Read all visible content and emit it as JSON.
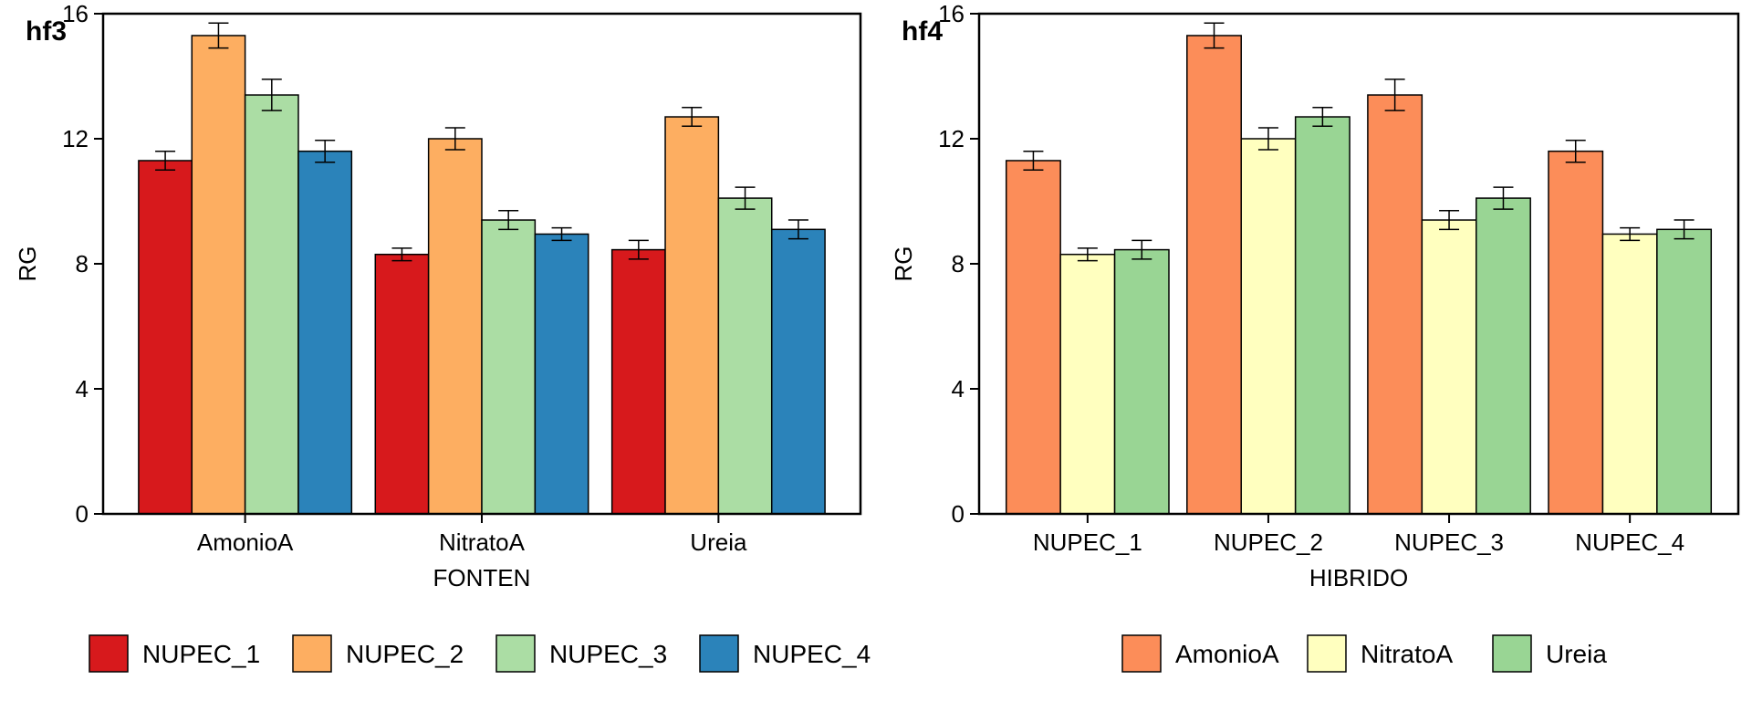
{
  "chart_data": [
    {
      "type": "bar",
      "panel_tag": "hf3",
      "xlabel": "FONTEN",
      "ylabel": "RG",
      "ylim": [
        0,
        16
      ],
      "yticks": [
        0,
        4,
        8,
        12,
        16
      ],
      "grid": false,
      "legend_position": "bottom",
      "categories": [
        "AmonioA",
        "NitratoA",
        "Ureia"
      ],
      "series": [
        {
          "name": "NUPEC_1",
          "color": "#d7191c",
          "values": [
            11.3,
            8.3,
            8.45
          ],
          "errors": [
            0.3,
            0.2,
            0.3
          ]
        },
        {
          "name": "NUPEC_2",
          "color": "#fdae61",
          "values": [
            15.3,
            12.0,
            12.7
          ],
          "errors": [
            0.4,
            0.35,
            0.3
          ]
        },
        {
          "name": "NUPEC_3",
          "color": "#abdda4",
          "values": [
            13.4,
            9.4,
            10.1
          ],
          "errors": [
            0.5,
            0.3,
            0.35
          ]
        },
        {
          "name": "NUPEC_4",
          "color": "#2b83ba",
          "values": [
            11.6,
            8.95,
            9.1
          ],
          "errors": [
            0.35,
            0.2,
            0.3
          ]
        }
      ]
    },
    {
      "type": "bar",
      "panel_tag": "hf4",
      "xlabel": "HIBRIDO",
      "ylabel": "RG",
      "ylim": [
        0,
        16
      ],
      "yticks": [
        0,
        4,
        8,
        12,
        16
      ],
      "grid": false,
      "legend_position": "bottom",
      "categories": [
        "NUPEC_1",
        "NUPEC_2",
        "NUPEC_3",
        "NUPEC_4"
      ],
      "series": [
        {
          "name": "AmonioA",
          "color": "#fc8d59",
          "values": [
            11.3,
            15.3,
            13.4,
            11.6
          ],
          "errors": [
            0.3,
            0.4,
            0.5,
            0.35
          ]
        },
        {
          "name": "NitratoA",
          "color": "#ffffbf",
          "values": [
            8.3,
            12.0,
            9.4,
            8.95
          ],
          "errors": [
            0.2,
            0.35,
            0.3,
            0.2
          ]
        },
        {
          "name": "Ureia",
          "color": "#99d594",
          "values": [
            8.45,
            12.7,
            10.1,
            9.1
          ],
          "errors": [
            0.3,
            0.3,
            0.35,
            0.3
          ]
        }
      ]
    }
  ]
}
